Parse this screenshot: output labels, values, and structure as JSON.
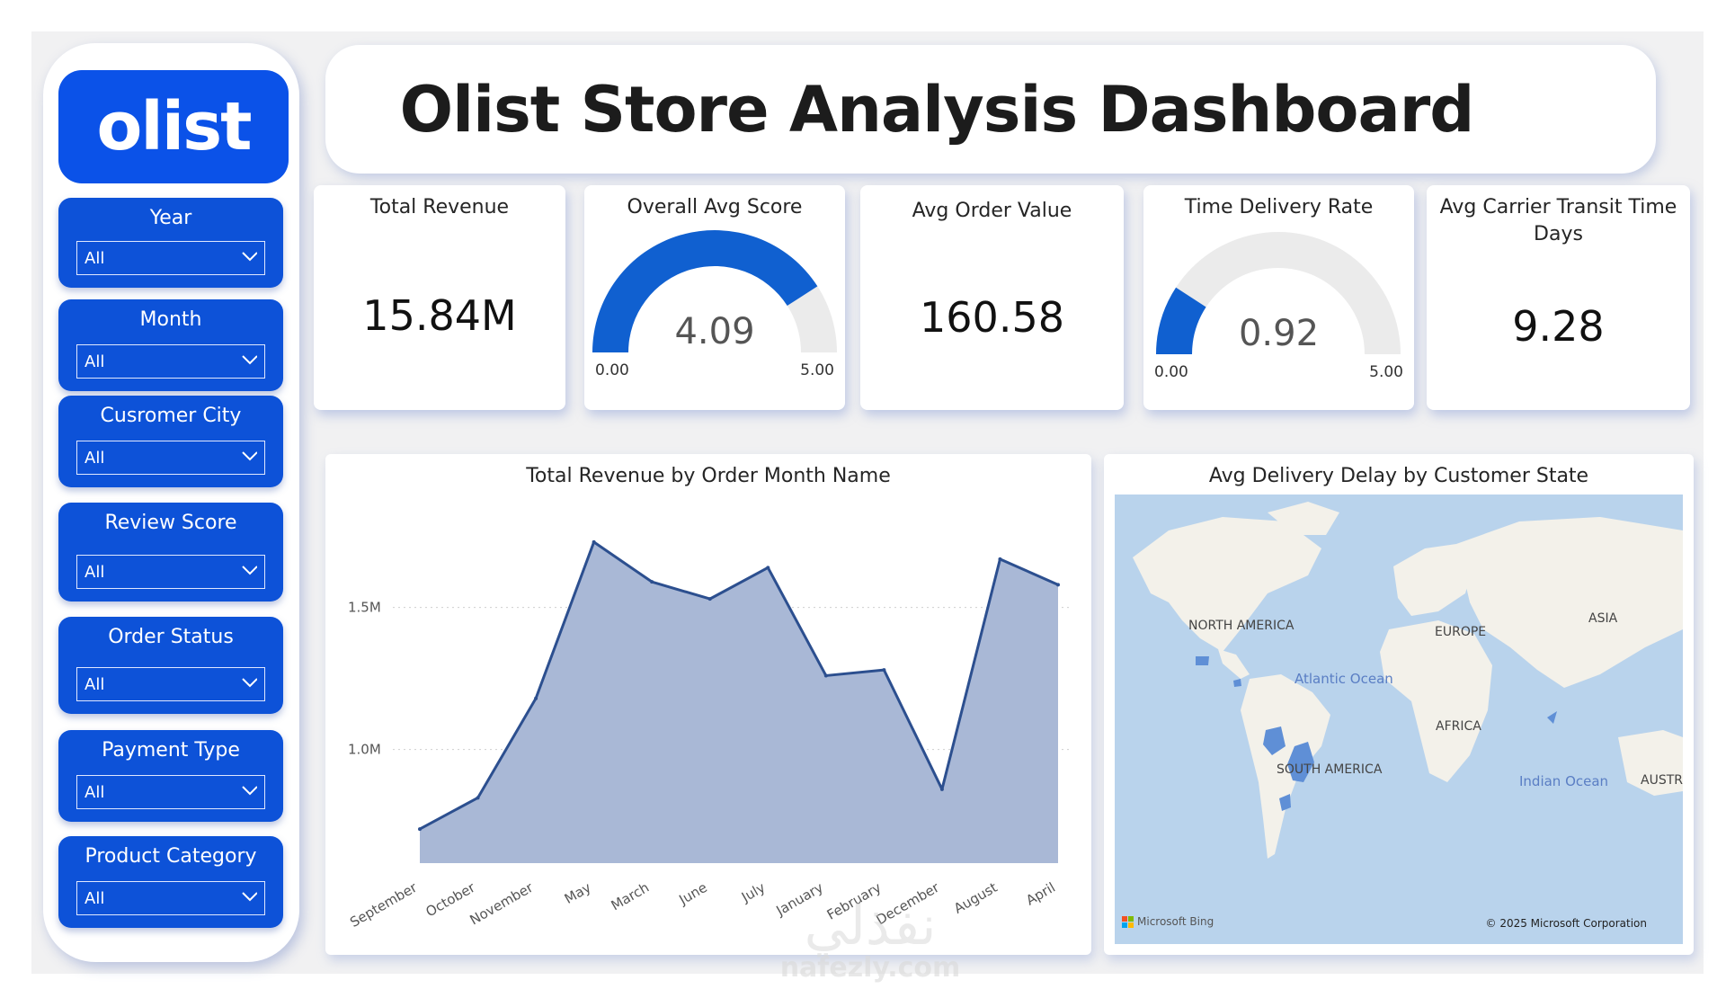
{
  "logo": {
    "text": "olist"
  },
  "slicers": [
    {
      "label": "Year",
      "value": "All"
    },
    {
      "label": "Month",
      "value": "All"
    },
    {
      "label": "Cusromer City",
      "value": "All"
    },
    {
      "label": "Review Score",
      "value": "All"
    },
    {
      "label": "Order Status",
      "value": "All"
    },
    {
      "label": "Payment Type",
      "value": "All"
    },
    {
      "label": "Product Category",
      "value": "All"
    }
  ],
  "title": "Olist Store Analysis Dashboard",
  "kpis": {
    "total_revenue": {
      "title": "Total Revenue",
      "value": "15.84M"
    },
    "avg_score": {
      "title": "Overall Avg Score",
      "value": "4.09",
      "min": "0.00",
      "max": "5.00",
      "level": 4.09,
      "range": [
        0,
        5
      ]
    },
    "avg_order_value": {
      "title": "Avg Order Value",
      "value": "160.58"
    },
    "time_delivery_rate": {
      "title": "Time Delivery Rate",
      "value": "0.92",
      "min": "0.00",
      "max": "5.00",
      "level": 0.92,
      "range": [
        0,
        5
      ]
    },
    "avg_transit": {
      "title_line1": "Avg Carrier Transit Time",
      "title_line2": "Days",
      "value": "9.28"
    }
  },
  "colors": {
    "brand_blue": "#0b52e8",
    "slicer_blue": "#0d52d8",
    "gauge_fill": "#1060d0",
    "gauge_track": "#ebebeb",
    "area_fill": "#a9b8d6",
    "area_line": "#2c4f8f"
  },
  "chart_data": {
    "type": "area",
    "title": "Total Revenue by Order Month Name",
    "xlabel": "",
    "ylabel": "",
    "categories": [
      "September",
      "October",
      "November",
      "May",
      "March",
      "June",
      "July",
      "January",
      "February",
      "December",
      "August",
      "April"
    ],
    "values": [
      0.72,
      0.83,
      1.18,
      1.73,
      1.59,
      1.53,
      1.64,
      1.26,
      1.28,
      0.86,
      1.67,
      1.58
    ],
    "unit": "M",
    "yticks": [
      {
        "v": 1.0,
        "label": "1.0M"
      },
      {
        "v": 1.5,
        "label": "1.5M"
      }
    ],
    "ylim": [
      0.6,
      1.85
    ],
    "grid": true
  },
  "map": {
    "title": "Avg Delivery Delay by Customer State",
    "labels": {
      "north_america": "NORTH AMERICA",
      "europe": "EUROPE",
      "asia": "ASIA",
      "africa": "AFRICA",
      "south_america": "SOUTH AMERICA",
      "atlantic": "Atlantic Ocean",
      "indian": "Indian Ocean",
      "australia": "AUSTR"
    },
    "attribution": "Microsoft Bing",
    "copyright": "© 2025 Microsoft Corporation"
  },
  "watermark": {
    "arabic": "نفذلي",
    "latin": "nafezly.com"
  }
}
